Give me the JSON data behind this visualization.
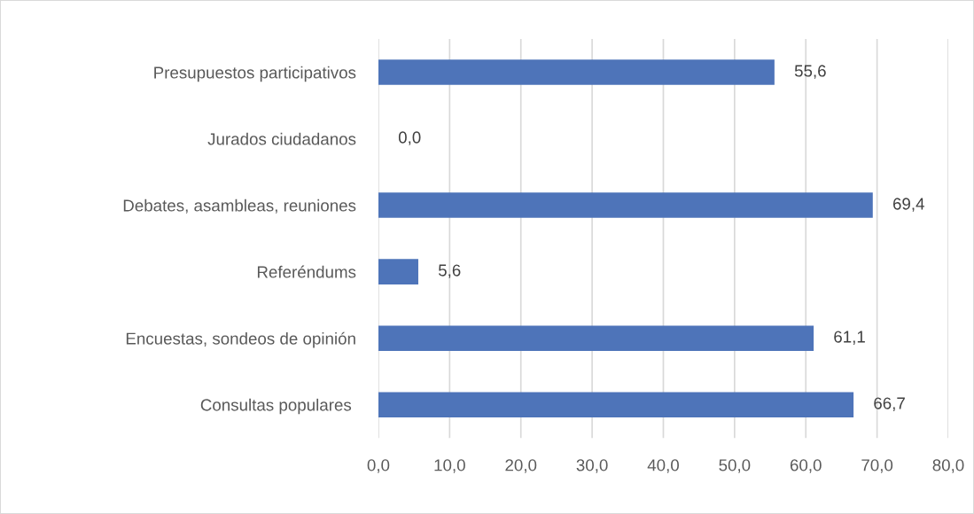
{
  "chart_data": {
    "type": "bar",
    "orientation": "horizontal",
    "categories": [
      "Presupuestos participativos",
      "Jurados ciudadanos",
      "Debates, asambleas, reuniones",
      "Referéndums",
      "Encuestas, sondeos de opinión",
      "Consultas populares "
    ],
    "values": [
      55.6,
      0.0,
      69.4,
      5.6,
      61.1,
      66.7
    ],
    "value_labels": [
      "55,6",
      "0,0",
      "69,4",
      "5,6",
      "61,1",
      "66,7"
    ],
    "color": "#4e74b9",
    "xlim": [
      0,
      80
    ],
    "xticks": [
      {
        "value": 0,
        "label": "0,0"
      },
      {
        "value": 10,
        "label": "10,0"
      },
      {
        "value": 20,
        "label": "20,0"
      },
      {
        "value": 30,
        "label": "30,0"
      },
      {
        "value": 40,
        "label": "40,0"
      },
      {
        "value": 50,
        "label": "50,0"
      },
      {
        "value": 60,
        "label": "60,0"
      },
      {
        "value": 70,
        "label": "70,0"
      },
      {
        "value": 80,
        "label": "80,0"
      }
    ],
    "grid": "x",
    "legend": false
  }
}
